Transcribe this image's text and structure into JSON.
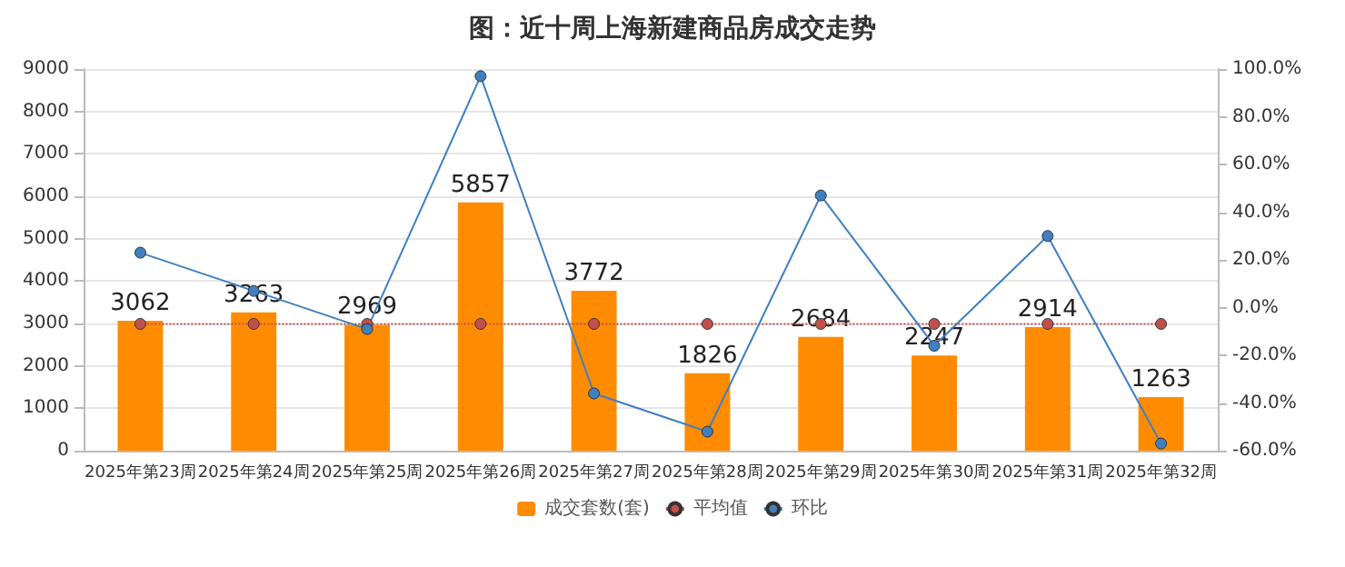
{
  "chart_data": {
    "type": "bar",
    "title": "图：近十周上海新建商品房成交走势",
    "categories": [
      "2025年第23周",
      "2025年第24周",
      "2025年第25周",
      "2025年第26周",
      "2025年第27周",
      "2025年第28周",
      "2025年第29周",
      "2025年第30周",
      "2025年第31周",
      "2025年第32周"
    ],
    "series": [
      {
        "name": "成交套数(套)",
        "color": "#ff8c00",
        "values": [
          3062,
          3263,
          2969,
          5857,
          3772,
          1826,
          2684,
          2247,
          2914,
          1263
        ],
        "data_labels": true
      },
      {
        "name": "平均值",
        "type": "line",
        "color": "#c0504d",
        "line_style": "dotted",
        "marker": "circle",
        "values": [
          2990,
          2990,
          2990,
          2990,
          2990,
          2990,
          2990,
          2990,
          2990,
          2990
        ]
      },
      {
        "name": "环比",
        "type": "line",
        "color": "#3f7fc0",
        "line_style": "solid",
        "marker": "circle",
        "axis": "y2",
        "values": [
          23,
          7,
          -9,
          97,
          -36,
          -52,
          47,
          -16,
          30,
          -57
        ]
      }
    ],
    "ylim": [
      0,
      9000
    ],
    "yticks": [
      0,
      1000,
      2000,
      3000,
      4000,
      5000,
      6000,
      7000,
      8000,
      9000
    ],
    "y2lim": [
      -60,
      100
    ],
    "y2ticks": [
      {
        "value": -60,
        "label": "-60.0%"
      },
      {
        "value": -40,
        "label": "-40.0%"
      },
      {
        "value": -20,
        "label": "-20.0%"
      },
      {
        "value": 0,
        "label": "0.0%"
      },
      {
        "value": 20,
        "label": "20.0%"
      },
      {
        "value": 40,
        "label": "40.0%"
      },
      {
        "value": 60,
        "label": "60.0%"
      },
      {
        "value": 80,
        "label": "80.0%"
      },
      {
        "value": 100,
        "label": "100.0%"
      }
    ],
    "grid": "y",
    "legend": "bottom"
  }
}
